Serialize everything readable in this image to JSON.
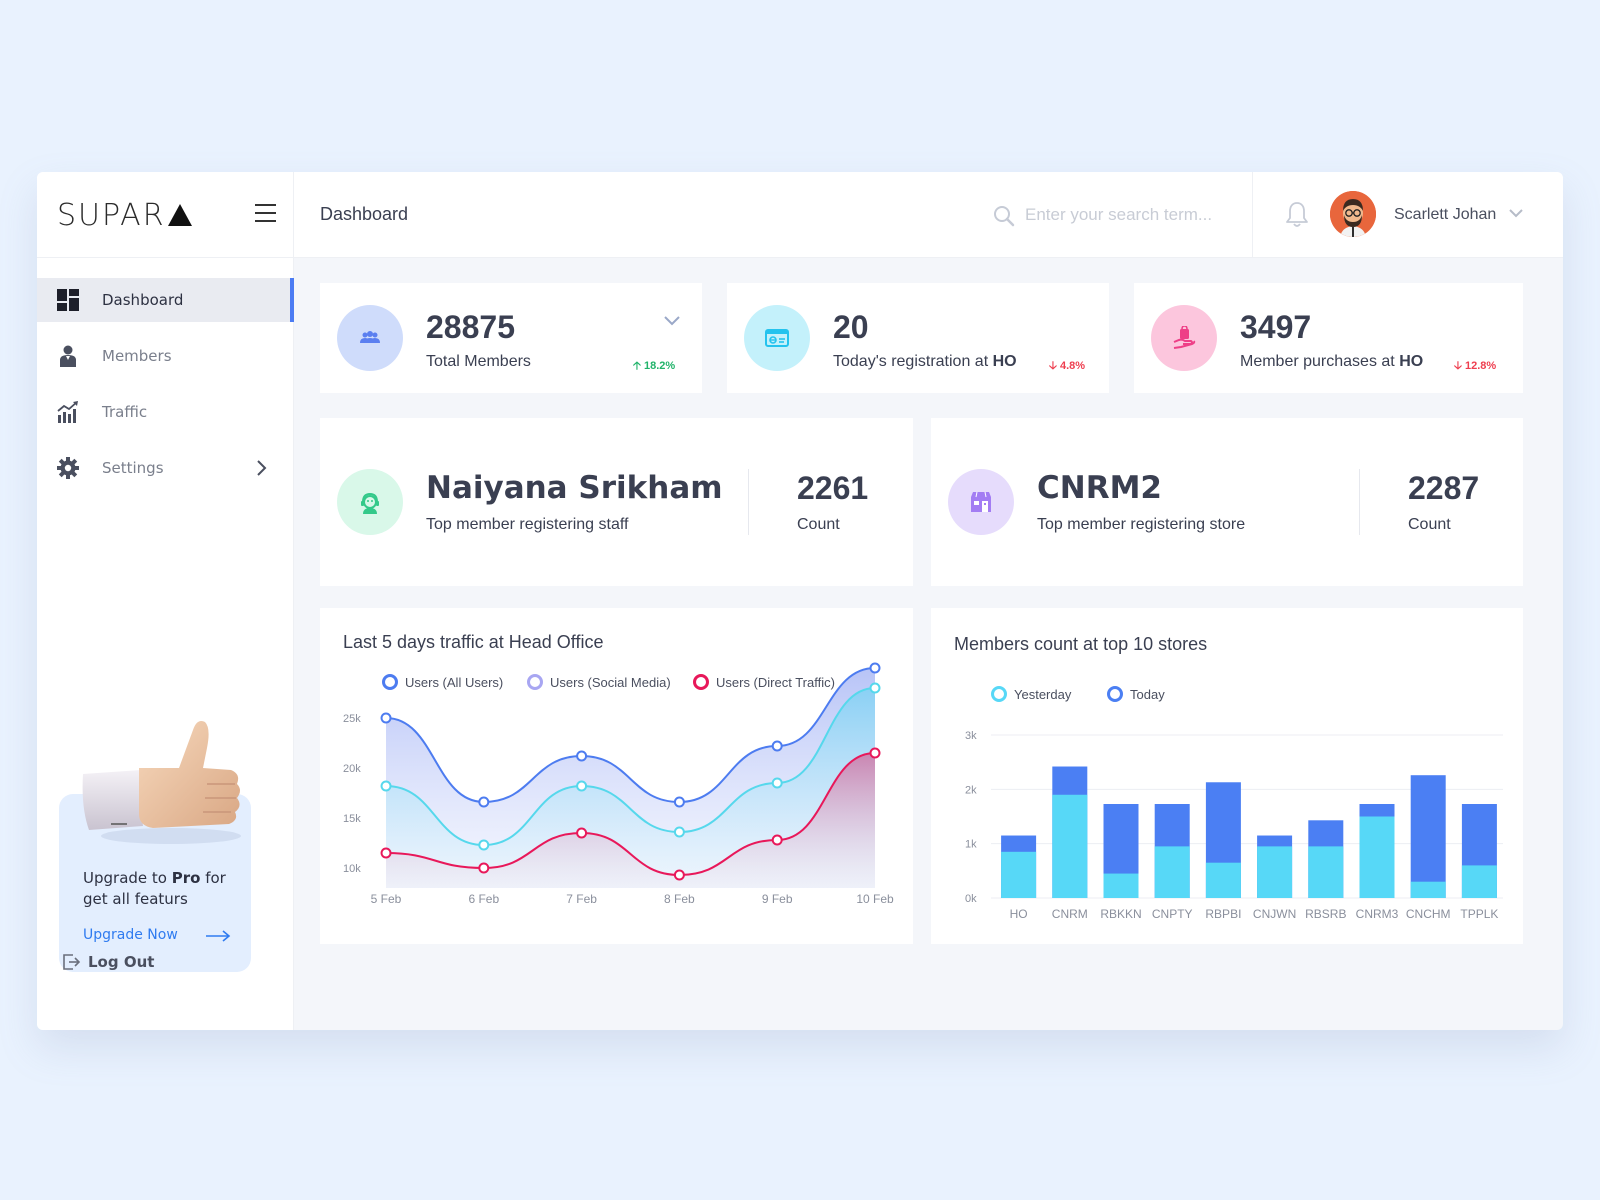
{
  "app": {
    "logo": "SUPAR",
    "page_title": "Dashboard"
  },
  "header": {
    "search_placeholder": "Enter your search term...",
    "user_name": "Scarlett Johan"
  },
  "sidebar": {
    "items": [
      {
        "label": "Dashboard",
        "icon": "dashboard-icon",
        "active": true
      },
      {
        "label": "Members",
        "icon": "member-icon",
        "active": false
      },
      {
        "label": "Traffic",
        "icon": "traffic-icon",
        "active": false
      },
      {
        "label": "Settings",
        "icon": "gear-icon",
        "active": false
      }
    ],
    "promo": {
      "text_before": "Upgrade to ",
      "text_bold": "Pro",
      "text_after": " for get all featurs",
      "link": "Upgrade Now"
    },
    "logout": "Log Out"
  },
  "stats": [
    {
      "value": "28875",
      "label": "Total Members",
      "label_bold": "",
      "delta": "18.2%",
      "trend": "up",
      "color": "#cfdcfb",
      "icon_color": "#5b7ff0"
    },
    {
      "value": "20",
      "label": "Today's registration at ",
      "label_bold": "HO",
      "delta": "4.8%",
      "trend": "down",
      "color": "#c4f1fb",
      "icon_color": "#24c3ee"
    },
    {
      "value": "3497",
      "label": "Member purchases at ",
      "label_bold": "HO",
      "delta": "12.8%",
      "trend": "down",
      "color": "#fcc6dd",
      "icon_color": "#ee3f87"
    }
  ],
  "top": [
    {
      "name": "Naiyana Srikham",
      "label": "Top member registering staff",
      "count": "2261",
      "count_label": "Count",
      "color": "#d9f8e9",
      "icon_color": "#34c98a"
    },
    {
      "name": "CNRM2",
      "label": "Top member registering store",
      "count": "2287",
      "count_label": "Count",
      "color": "#e6dcfc",
      "icon_color": "#a37df3"
    }
  ],
  "chart_data": [
    {
      "type": "area",
      "title": "Last 5 days traffic at Head Office",
      "x": [
        "5 Feb",
        "6 Feb",
        "7 Feb",
        "8 Feb",
        "9 Feb",
        "10 Feb"
      ],
      "y_ticks": [
        "25k",
        "20k",
        "15k",
        "10k"
      ],
      "ylim": [
        8000,
        30000
      ],
      "grid": false,
      "legend": "top",
      "series": [
        {
          "name": "Users (All Users)",
          "color": "#4d7cf0",
          "values": [
            25000,
            16600,
            21200,
            16600,
            22200,
            30000
          ]
        },
        {
          "name": "Users (Social Media)",
          "color": "#a8a6f2",
          "values": [
            18200,
            12300,
            18200,
            13600,
            18500,
            28000
          ]
        },
        {
          "name": "Users (Direct Traffic)",
          "color": "#e8185a",
          "values": [
            11500,
            10000,
            13500,
            9300,
            12800,
            21500
          ]
        }
      ],
      "line_colors": {
        "all": "#4d7cf0",
        "social": "#56d8ec",
        "direct": "#e8185a"
      }
    },
    {
      "type": "bar",
      "title": "Members count at top 10 stores",
      "categories": [
        "HO",
        "CNRM",
        "RBKKN",
        "CNPTY",
        "RBPBI",
        "CNJWN",
        "RBSRB",
        "CNRM3",
        "CNCHM",
        "TPPLK"
      ],
      "y_ticks": [
        "3k",
        "2k",
        "1k",
        "0k"
      ],
      "ylim": [
        0,
        3000
      ],
      "legend": "top",
      "series": [
        {
          "name": "Yesterday",
          "color": "#57d8f7",
          "values": [
            850,
            1900,
            450,
            950,
            650,
            950,
            950,
            1500,
            300,
            600
          ]
        },
        {
          "name": "Today",
          "color": "#4b7ff3",
          "values": [
            1150,
            2420,
            1730,
            1730,
            2130,
            1150,
            1430,
            1730,
            2260,
            1730
          ]
        }
      ]
    }
  ]
}
